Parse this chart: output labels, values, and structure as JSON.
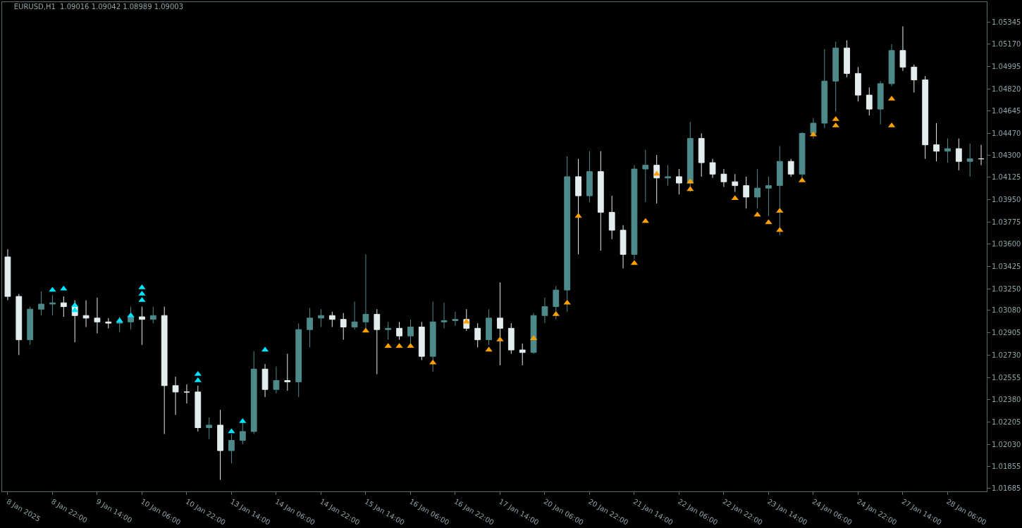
{
  "chart_data": {
    "type": "candlestick",
    "title": "EURUSD,H1  1.09016 1.09042 1.08989 1.09003",
    "categories": [
      "8 Jan 2025",
      null,
      null,
      null,
      "8 Jan 22:00",
      null,
      null,
      null,
      "9 Jan 14:00",
      null,
      null,
      null,
      "10 Jan 06:00",
      null,
      null,
      null,
      "10 Jan 22:00",
      null,
      null,
      null,
      "13 Jan 14:00",
      null,
      null,
      null,
      "14 Jan 06:00",
      null,
      null,
      null,
      "14 Jan 22:00",
      null,
      null,
      null,
      "15 Jan 14:00",
      null,
      null,
      null,
      "16 Jan 06:00",
      null,
      null,
      null,
      "16 Jan 22:00",
      null,
      null,
      null,
      "17 Jan 14:00",
      null,
      null,
      null,
      "20 Jan 06:00",
      null,
      null,
      null,
      "20 Jan 22:00",
      null,
      null,
      null,
      "21 Jan 14:00",
      null,
      null,
      null,
      "22 Jan 06:00",
      null,
      null,
      null,
      "22 Jan 22:00",
      null,
      null,
      null,
      "23 Jan 14:00",
      null,
      null,
      null,
      "24 Jan 06:00",
      null,
      null,
      null,
      "24 Jan 22:00",
      null,
      null,
      null,
      "27 Jan 14:00",
      null,
      null,
      null,
      "28 Jan 06:00",
      null,
      null,
      null
    ],
    "ohlc": [
      [
        1.035,
        1.0356,
        1.0316,
        1.0319
      ],
      [
        1.0319,
        1.0321,
        1.0273,
        1.0285
      ],
      [
        1.0285,
        1.0311,
        1.0281,
        1.0309
      ],
      [
        1.0309,
        1.0323,
        1.0304,
        1.0313
      ],
      [
        1.0313,
        1.032,
        1.0304,
        1.0314
      ],
      [
        1.0314,
        1.0319,
        1.0303,
        1.0311
      ],
      [
        1.0311,
        1.0316,
        1.0283,
        1.0304
      ],
      [
        1.0304,
        1.0316,
        1.0295,
        1.0302
      ],
      [
        1.0302,
        1.0318,
        1.029,
        1.0299
      ],
      [
        1.0299,
        1.0302,
        1.0294,
        1.0298
      ],
      [
        1.0298,
        1.0303,
        1.0291,
        1.0299
      ],
      [
        1.0299,
        1.0311,
        1.0293,
        1.0303
      ],
      [
        1.0303,
        1.0311,
        1.0281,
        1.0301
      ],
      [
        1.0301,
        1.0311,
        1.0298,
        1.0304
      ],
      [
        1.0304,
        1.0311,
        1.0211,
        1.0249
      ],
      [
        1.0249,
        1.0256,
        1.0226,
        1.0244
      ],
      [
        1.0244,
        1.025,
        1.0235,
        1.0244
      ],
      [
        1.0244,
        1.0249,
        1.0213,
        1.0216
      ],
      [
        1.0216,
        1.0224,
        1.0207,
        1.0218
      ],
      [
        1.0218,
        1.023,
        1.0175,
        1.0198
      ],
      [
        1.0198,
        1.0211,
        1.0188,
        1.0206
      ],
      [
        1.0206,
        1.0221,
        1.0203,
        1.0213
      ],
      [
        1.0213,
        1.0276,
        1.0211,
        1.0262
      ],
      [
        1.0262,
        1.0266,
        1.024,
        1.0246
      ],
      [
        1.0246,
        1.0264,
        1.0243,
        1.0253
      ],
      [
        1.0253,
        1.0274,
        1.0245,
        1.0252
      ],
      [
        1.0252,
        1.0298,
        1.024,
        1.0293
      ],
      [
        1.0293,
        1.031,
        1.0279,
        1.0302
      ],
      [
        1.0302,
        1.0309,
        1.0295,
        1.0304
      ],
      [
        1.0304,
        1.0307,
        1.0295,
        1.0301
      ],
      [
        1.0301,
        1.0306,
        1.0285,
        1.0295
      ],
      [
        1.0295,
        1.0315,
        1.0293,
        1.0299
      ],
      [
        1.0299,
        1.0352,
        1.0293,
        1.0305
      ],
      [
        1.0305,
        1.0309,
        1.0258,
        1.0293
      ],
      [
        1.0293,
        1.0299,
        1.0285,
        1.0294
      ],
      [
        1.0294,
        1.0299,
        1.0285,
        1.0288
      ],
      [
        1.0288,
        1.0301,
        1.0282,
        1.0295
      ],
      [
        1.0295,
        1.0299,
        1.0269,
        1.0272
      ],
      [
        1.0272,
        1.0315,
        1.026,
        1.0299
      ],
      [
        1.0299,
        1.0314,
        1.0294,
        1.03
      ],
      [
        1.03,
        1.0307,
        1.0296,
        1.0301
      ],
      [
        1.0301,
        1.0309,
        1.0292,
        1.0294
      ],
      [
        1.0294,
        1.0298,
        1.0279,
        1.0285
      ],
      [
        1.0285,
        1.0309,
        1.0281,
        1.0302
      ],
      [
        1.0302,
        1.033,
        1.0265,
        1.0294
      ],
      [
        1.0294,
        1.0298,
        1.0274,
        1.0277
      ],
      [
        1.0277,
        1.0282,
        1.0265,
        1.0275
      ],
      [
        1.0275,
        1.0306,
        1.0274,
        1.0304
      ],
      [
        1.0304,
        1.0318,
        1.0298,
        1.0311
      ],
      [
        1.0311,
        1.0327,
        1.0301,
        1.0324
      ],
      [
        1.0324,
        1.0429,
        1.0307,
        1.0413
      ],
      [
        1.0413,
        1.0427,
        1.0352,
        1.0398
      ],
      [
        1.0398,
        1.0433,
        1.0393,
        1.0417
      ],
      [
        1.0417,
        1.0433,
        1.0355,
        1.0385
      ],
      [
        1.0385,
        1.0398,
        1.0364,
        1.0371
      ],
      [
        1.0371,
        1.0375,
        1.0341,
        1.0352
      ],
      [
        1.0352,
        1.0422,
        1.0348,
        1.0419
      ],
      [
        1.0419,
        1.0434,
        1.0393,
        1.0422
      ],
      [
        1.0422,
        1.043,
        1.0392,
        1.0412
      ],
      [
        1.0412,
        1.0422,
        1.0406,
        1.0413
      ],
      [
        1.0413,
        1.0419,
        1.0399,
        1.0408
      ],
      [
        1.0408,
        1.0456,
        1.0401,
        1.0443
      ],
      [
        1.0443,
        1.0447,
        1.0413,
        1.0424
      ],
      [
        1.0424,
        1.0427,
        1.0412,
        1.0415
      ],
      [
        1.0415,
        1.0419,
        1.0405,
        1.0409
      ],
      [
        1.0409,
        1.0415,
        1.0401,
        1.0406
      ],
      [
        1.0406,
        1.0413,
        1.0388,
        1.0397
      ],
      [
        1.0397,
        1.0419,
        1.0388,
        1.0404
      ],
      [
        1.0404,
        1.0413,
        1.0382,
        1.0406
      ],
      [
        1.0406,
        1.0437,
        1.0367,
        1.0425
      ],
      [
        1.0425,
        1.0427,
        1.0413,
        1.0415
      ],
      [
        1.0415,
        1.0448,
        1.0412,
        1.0447
      ],
      [
        1.0447,
        1.0459,
        1.0443,
        1.0455
      ],
      [
        1.0455,
        1.0513,
        1.0451,
        1.0488
      ],
      [
        1.0488,
        1.0519,
        1.0464,
        1.0514
      ],
      [
        1.0514,
        1.052,
        1.0491,
        1.0494
      ],
      [
        1.0494,
        1.0499,
        1.0472,
        1.0477
      ],
      [
        1.0477,
        1.0483,
        1.0461,
        1.0466
      ],
      [
        1.0466,
        1.0488,
        1.0454,
        1.0486
      ],
      [
        1.0486,
        1.0517,
        1.0484,
        1.0512
      ],
      [
        1.0512,
        1.0531,
        1.0496,
        1.0499
      ],
      [
        1.0499,
        1.0501,
        1.0479,
        1.0489
      ],
      [
        1.0489,
        1.0492,
        1.0427,
        1.0438
      ],
      [
        1.0438,
        1.0455,
        1.0425,
        1.0433
      ],
      [
        1.0433,
        1.0443,
        1.0424,
        1.0435
      ],
      [
        1.0435,
        1.0443,
        1.0418,
        1.0425
      ],
      [
        1.0425,
        1.0439,
        1.0413,
        1.0427
      ],
      [
        1.0427,
        1.0438,
        1.0422,
        1.0427
      ]
    ],
    "colors": [
      "#e4eded",
      "#e4eded",
      "#4f8a8b",
      "#4f8a8b",
      "#4f8a8b",
      "#e4eded",
      "#e4eded",
      "#e4eded",
      "#e4eded",
      "#e4eded",
      "#4f8a8b",
      "#4f8a8b",
      "#e4eded",
      "#4f8a8b",
      "#e4eded",
      "#e4eded",
      "#e4eded",
      "#e4eded",
      "#4f8a8b",
      "#e4eded",
      "#4f8a8b",
      "#4f8a8b",
      "#4f8a8b",
      "#e4eded",
      "#4f8a8b",
      "#e4eded",
      "#4f8a8b",
      "#4f8a8b",
      "#4f8a8b",
      "#e4eded",
      "#e4eded",
      "#4f8a8b",
      "#4f8a8b",
      "#e4eded",
      "#4f8a8b",
      "#e4eded",
      "#4f8a8b",
      "#e4eded",
      "#4f8a8b",
      "#4f8a8b",
      "#4f8a8b",
      "#e4eded",
      "#e4eded",
      "#4f8a8b",
      "#e4eded",
      "#e4eded",
      "#e4eded",
      "#4f8a8b",
      "#4f8a8b",
      "#4f8a8b",
      "#4f8a8b",
      "#e4eded",
      "#4f8a8b",
      "#e4eded",
      "#e4eded",
      "#e4eded",
      "#4f8a8b",
      "#4f8a8b",
      "#e4eded",
      "#4f8a8b",
      "#e4eded",
      "#4f8a8b",
      "#e4eded",
      "#e4eded",
      "#e4eded",
      "#e4eded",
      "#e4eded",
      "#4f8a8b",
      "#4f8a8b",
      "#4f8a8b",
      "#e4eded",
      "#4f8a8b",
      "#4f8a8b",
      "#4f8a8b",
      "#4f8a8b",
      "#e4eded",
      "#e4eded",
      "#e4eded",
      "#4f8a8b",
      "#4f8a8b",
      "#e4eded",
      "#e4eded",
      "#e4eded",
      "#e4eded",
      "#4f8a8b",
      "#e4eded",
      "#4f8a8b",
      "#e4eded"
    ],
    "series": [
      {
        "type": "scatter",
        "marker": "triangle",
        "color": "#00e5ff",
        "values": [
          null,
          null,
          null,
          null,
          1.0324,
          1.0325,
          1.0312,
          null,
          null,
          null,
          1.03,
          1.0304,
          1.0326,
          null,
          null,
          null,
          null,
          1.0258,
          null,
          null,
          1.0213,
          1.0221,
          null,
          1.0277,
          null,
          null,
          null,
          null,
          null,
          null,
          null,
          null,
          null,
          null,
          null,
          null,
          null,
          null,
          null,
          null,
          null,
          null,
          null,
          null,
          null,
          null,
          null,
          null,
          null,
          null,
          null,
          null,
          null,
          null,
          null,
          null,
          null,
          null,
          null,
          null,
          null,
          null,
          null,
          null,
          null,
          null,
          null,
          null,
          null,
          null,
          null,
          null,
          null,
          null,
          null,
          null,
          null,
          null,
          null,
          null,
          null,
          null,
          null,
          null,
          null,
          null,
          null,
          null
        ]
      },
      {
        "type": "scatter",
        "marker": "triangle",
        "color": "#00e5ff",
        "values": [
          null,
          null,
          null,
          null,
          null,
          null,
          1.0308,
          null,
          null,
          null,
          null,
          null,
          1.0321,
          null,
          null,
          null,
          null,
          1.0253,
          null,
          null,
          null,
          null,
          null,
          null,
          null,
          null,
          null,
          null,
          null,
          null,
          null,
          null,
          null,
          null,
          null,
          null,
          null,
          null,
          null,
          null,
          null,
          null,
          null,
          null,
          null,
          null,
          null,
          null,
          null,
          null,
          null,
          null,
          null,
          null,
          null,
          null,
          null,
          null,
          null,
          null,
          null,
          null,
          null,
          null,
          null,
          null,
          null,
          null,
          null,
          null,
          null,
          null,
          null,
          null,
          null,
          null,
          null,
          null,
          null,
          null,
          null,
          null,
          null,
          null,
          null,
          null,
          null,
          null
        ]
      },
      {
        "type": "scatter",
        "marker": "triangle",
        "color": "#00e5ff",
        "values": [
          null,
          null,
          null,
          null,
          null,
          null,
          null,
          null,
          null,
          null,
          null,
          null,
          1.0316,
          null,
          null,
          null,
          null,
          null,
          null,
          null,
          null,
          null,
          null,
          null,
          null,
          null,
          null,
          null,
          null,
          null,
          null,
          null,
          null,
          null,
          null,
          null,
          null,
          null,
          null,
          null,
          null,
          null,
          null,
          null,
          null,
          null,
          null,
          null,
          null,
          null,
          null,
          null,
          null,
          null,
          null,
          null,
          null,
          null,
          null,
          null,
          null,
          null,
          null,
          null,
          null,
          null,
          null,
          null,
          null,
          null,
          null,
          null,
          null,
          null,
          null,
          null,
          null,
          null,
          null,
          null,
          null,
          null,
          null,
          null,
          null,
          null,
          null,
          null
        ]
      },
      {
        "type": "scatter",
        "marker": "triangle",
        "color": "#ffa000",
        "values": [
          null,
          null,
          null,
          null,
          null,
          null,
          null,
          null,
          null,
          null,
          null,
          null,
          null,
          null,
          null,
          null,
          null,
          null,
          null,
          null,
          null,
          null,
          null,
          null,
          null,
          null,
          null,
          null,
          null,
          null,
          null,
          null,
          1.0292,
          null,
          1.028,
          1.028,
          1.028,
          null,
          1.0267,
          null,
          null,
          1.0299,
          null,
          1.0277,
          1.0285,
          null,
          null,
          1.0286,
          null,
          1.0305,
          1.0314,
          1.0382,
          null,
          null,
          null,
          null,
          1.0345,
          1.0378,
          1.0415,
          null,
          null,
          1.0403,
          null,
          null,
          null,
          1.0396,
          null,
          1.0383,
          1.0377,
          1.0386,
          null,
          1.041,
          1.0446,
          null,
          1.0458,
          null,
          null,
          null,
          null,
          1.0453,
          null,
          null,
          null,
          null,
          null,
          null,
          null,
          null
        ]
      },
      {
        "type": "scatter",
        "marker": "triangle",
        "color": "#ffa000",
        "values": [
          null,
          null,
          null,
          null,
          null,
          null,
          null,
          null,
          null,
          null,
          null,
          null,
          null,
          null,
          null,
          null,
          null,
          null,
          null,
          null,
          null,
          null,
          null,
          null,
          null,
          null,
          null,
          null,
          null,
          null,
          null,
          null,
          null,
          null,
          null,
          null,
          null,
          null,
          null,
          null,
          null,
          null,
          null,
          null,
          null,
          null,
          null,
          null,
          null,
          null,
          null,
          null,
          null,
          null,
          null,
          null,
          null,
          null,
          null,
          null,
          null,
          1.0409,
          null,
          null,
          null,
          null,
          null,
          null,
          null,
          1.0371,
          null,
          null,
          null,
          null,
          1.0453,
          null,
          null,
          null,
          null,
          1.0474,
          null,
          null,
          null,
          null,
          null,
          null,
          null,
          null
        ]
      }
    ],
    "ylim": [
      1.0166,
      1.055
    ],
    "yticks": [
      1.01685,
      1.01855,
      {
        "value": 1.0203,
        "label": "1.02030"
      },
      1.02205,
      {
        "value": 1.0238,
        "label": "1.02380"
      },
      1.02555,
      {
        "value": 1.0273,
        "label": "1.02730"
      },
      1.02905,
      {
        "value": 1.0308,
        "label": "1.03080"
      },
      {
        "value": 1.0325,
        "label": "1.03250"
      },
      1.03425,
      {
        "value": 1.036,
        "label": "1.03600"
      },
      1.03775,
      {
        "value": 1.0395,
        "label": "1.03950"
      },
      1.04125,
      {
        "value": 1.043,
        "label": "1.04300"
      },
      {
        "value": 1.0447,
        "label": "1.04470"
      },
      1.04645,
      {
        "value": 1.0482,
        "label": "1.04820"
      },
      1.04995,
      {
        "value": 1.0517,
        "label": "1.05170"
      },
      1.05345
    ]
  }
}
